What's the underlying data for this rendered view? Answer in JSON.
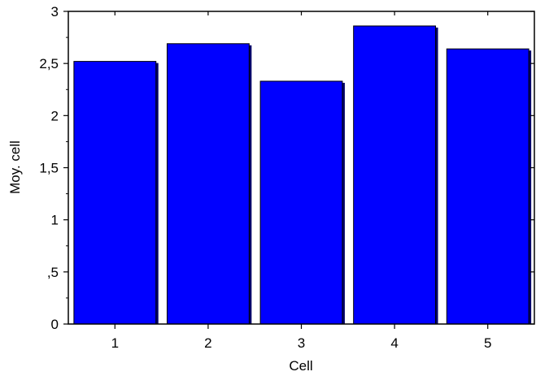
{
  "chart_data": {
    "type": "bar",
    "categories": [
      "1",
      "2",
      "3",
      "4",
      "5"
    ],
    "values": [
      2.52,
      2.69,
      2.33,
      2.86,
      2.64
    ],
    "xlabel": "Cell",
    "ylabel": "Moy. cell",
    "ylim": [
      0,
      3
    ],
    "yticks": [
      0,
      0.5,
      1,
      1.5,
      2,
      2.5,
      3
    ],
    "ytick_labels": [
      "0",
      ",5",
      "1",
      "1,5",
      "2",
      "2,5",
      "3"
    ],
    "grid": false,
    "legend": "none",
    "colors": {
      "bar": "#0000ff",
      "bar_shadow": "#000066",
      "axis": "#000000"
    }
  }
}
